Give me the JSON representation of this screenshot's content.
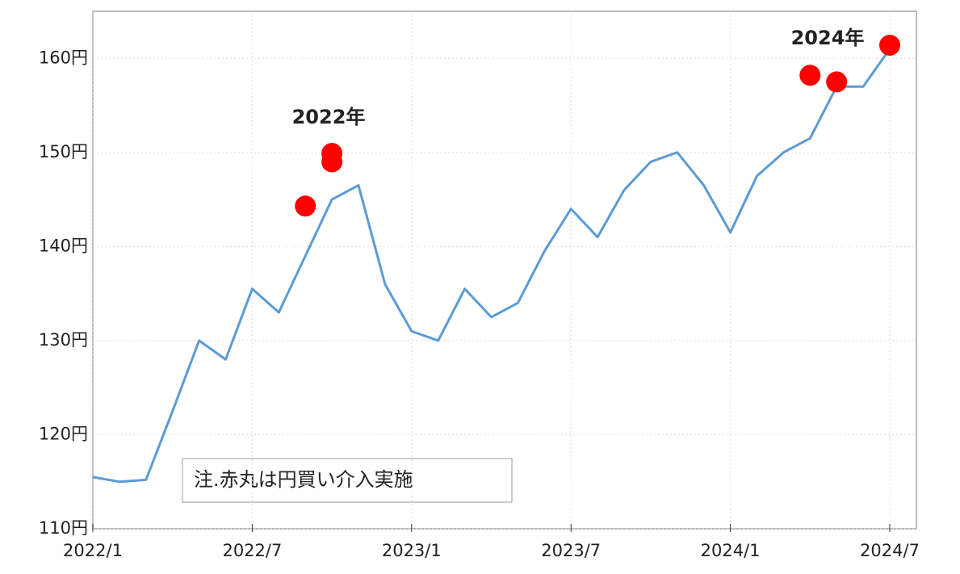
{
  "chart_data": {
    "type": "line",
    "x": [
      "2022/1",
      "2022/2",
      "2022/3",
      "2022/4",
      "2022/5",
      "2022/6",
      "2022/7",
      "2022/8",
      "2022/9",
      "2022/10",
      "2022/11",
      "2022/12",
      "2023/1",
      "2023/2",
      "2023/3",
      "2023/4",
      "2023/5",
      "2023/6",
      "2023/7",
      "2023/8",
      "2023/9",
      "2023/10",
      "2023/11",
      "2023/12",
      "2024/1",
      "2024/2",
      "2024/3",
      "2024/4",
      "2024/5",
      "2024/6",
      "2024/7"
    ],
    "series": [
      {
        "color": "#5b9bd5",
        "values": [
          115.5,
          115.0,
          115.2,
          122.5,
          130.0,
          128.0,
          135.5,
          133.0,
          139.0,
          145.0,
          146.5,
          136.0,
          131.0,
          130.0,
          135.5,
          132.5,
          134.0,
          139.5,
          144.0,
          141.0,
          146.0,
          149.0,
          150.0,
          146.5,
          141.5,
          147.5,
          150.0,
          151.5,
          157.0,
          157.0,
          161.0
        ]
      }
    ],
    "markers": {
      "color": "#ff0000",
      "x": [
        "2022/9",
        "2022/10",
        "2022/10",
        "2024/4",
        "2024/5",
        "2024/7"
      ],
      "values": [
        144.3,
        149.9,
        149.0,
        158.2,
        157.5,
        161.4
      ]
    },
    "ylim": [
      110,
      165
    ],
    "yticks": [
      {
        "value": 110,
        "label": "110円"
      },
      {
        "value": 120,
        "label": "120円"
      },
      {
        "value": 130,
        "label": "130円"
      },
      {
        "value": 140,
        "label": "140円"
      },
      {
        "value": 150,
        "label": "150円"
      },
      {
        "value": 160,
        "label": "160円"
      }
    ],
    "xticks": [
      "2022/1",
      "2022/7",
      "2023/1",
      "2023/7",
      "2024/1",
      "2024/7"
    ],
    "grid": true,
    "annotations": [
      "2022年",
      "2024年"
    ],
    "note": "注.赤丸は円買い介入実施"
  }
}
